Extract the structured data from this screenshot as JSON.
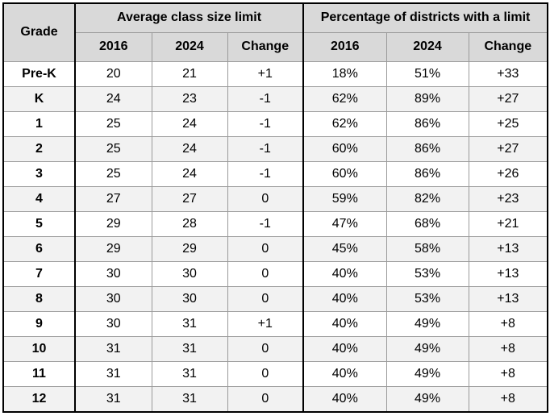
{
  "header": {
    "grade": "Grade",
    "group_a": "Average class size limit",
    "group_b": "Percentage of districts with a limit",
    "sub": [
      "2016",
      "2024",
      "Change",
      "2016",
      "2024",
      "Change"
    ]
  },
  "rows": [
    {
      "grade": "Pre-K",
      "a2016": "20",
      "a2024": "21",
      "achg": "+1",
      "p2016": "18%",
      "p2024": "51%",
      "pchg": "+33"
    },
    {
      "grade": "K",
      "a2016": "24",
      "a2024": "23",
      "achg": "-1",
      "p2016": "62%",
      "p2024": "89%",
      "pchg": "+27"
    },
    {
      "grade": "1",
      "a2016": "25",
      "a2024": "24",
      "achg": "-1",
      "p2016": "62%",
      "p2024": "86%",
      "pchg": "+25"
    },
    {
      "grade": "2",
      "a2016": "25",
      "a2024": "24",
      "achg": "-1",
      "p2016": "60%",
      "p2024": "86%",
      "pchg": "+27"
    },
    {
      "grade": "3",
      "a2016": "25",
      "a2024": "24",
      "achg": "-1",
      "p2016": "60%",
      "p2024": "86%",
      "pchg": "+26"
    },
    {
      "grade": "4",
      "a2016": "27",
      "a2024": "27",
      "achg": "0",
      "p2016": "59%",
      "p2024": "82%",
      "pchg": "+23"
    },
    {
      "grade": "5",
      "a2016": "29",
      "a2024": "28",
      "achg": "-1",
      "p2016": "47%",
      "p2024": "68%",
      "pchg": "+21"
    },
    {
      "grade": "6",
      "a2016": "29",
      "a2024": "29",
      "achg": "0",
      "p2016": "45%",
      "p2024": "58%",
      "pchg": "+13"
    },
    {
      "grade": "7",
      "a2016": "30",
      "a2024": "30",
      "achg": "0",
      "p2016": "40%",
      "p2024": "53%",
      "pchg": "+13"
    },
    {
      "grade": "8",
      "a2016": "30",
      "a2024": "30",
      "achg": "0",
      "p2016": "40%",
      "p2024": "53%",
      "pchg": "+13"
    },
    {
      "grade": "9",
      "a2016": "30",
      "a2024": "31",
      "achg": "+1",
      "p2016": "40%",
      "p2024": "49%",
      "pchg": "+8"
    },
    {
      "grade": "10",
      "a2016": "31",
      "a2024": "31",
      "achg": "0",
      "p2016": "40%",
      "p2024": "49%",
      "pchg": "+8"
    },
    {
      "grade": "11",
      "a2016": "31",
      "a2024": "31",
      "achg": "0",
      "p2016": "40%",
      "p2024": "49%",
      "pchg": "+8"
    },
    {
      "grade": "12",
      "a2016": "31",
      "a2024": "31",
      "achg": "0",
      "p2016": "40%",
      "p2024": "49%",
      "pchg": "+8"
    }
  ]
}
